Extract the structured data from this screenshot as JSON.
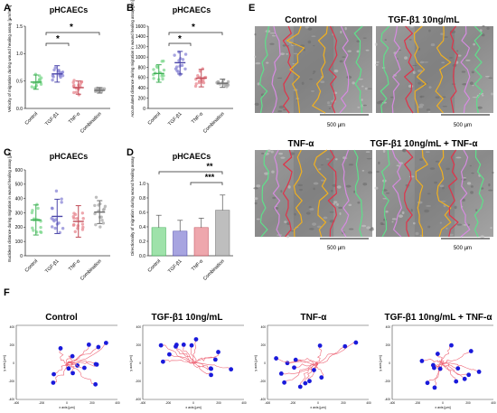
{
  "panels": {
    "A": {
      "letter": "A",
      "title": "pHCAECs",
      "ylabel": "Velocity of migration during wound healing assay [µm/min]",
      "yticks": [
        "0.0",
        "0.5",
        "1.0",
        "1.5"
      ],
      "sig": [
        "*",
        "*"
      ]
    },
    "B": {
      "letter": "B",
      "title": "pHCAECs",
      "ylabel": "Accumulated distance during migration in wound healing assay [µm]",
      "yticks": [
        "0",
        "200",
        "400",
        "600",
        "800",
        "1000",
        "1200",
        "1400",
        "1600"
      ],
      "sig": [
        "*",
        "*"
      ]
    },
    "C": {
      "letter": "C",
      "title": "pHCAECs",
      "ylabel": "Euclidean distance during migration in wound healing assay [µm]",
      "yticks": [
        "0",
        "100",
        "200",
        "300",
        "400",
        "500",
        "600"
      ]
    },
    "D": {
      "letter": "D",
      "title": "pHCAECs",
      "ylabel": "Directionality of migration during wound healing assay",
      "yticks": [
        "0.0",
        "0.2",
        "0.4",
        "0.6",
        "0.8",
        "1.0"
      ],
      "sig": [
        "**",
        "***"
      ]
    },
    "E": {
      "letter": "E",
      "images": [
        {
          "title": "Control",
          "scalebar": "500 µm"
        },
        {
          "title": "TGF-β1 10ng/mL",
          "scalebar": "500 µm"
        },
        {
          "title": "TNF-α",
          "scalebar": "500 µm"
        },
        {
          "title": "TGF-β1 10ng/mL + TNF-α",
          "scalebar": "500 µm"
        }
      ]
    },
    "F": {
      "letter": "F",
      "xlabel": "x axis [µm]",
      "ylabel": "y axis [µm]",
      "plots": [
        {
          "title": "Control"
        },
        {
          "title": "TGF-β1 10ng/mL"
        },
        {
          "title": "TNF-α"
        },
        {
          "title": "TGF-β1 10ng/mL + TNF-α"
        }
      ],
      "xticks": [
        "-400",
        "-300",
        "-200",
        "-100",
        "0",
        "100",
        "200",
        "300",
        "400"
      ],
      "yticks": [
        "400",
        "300",
        "200",
        "100",
        "0",
        "-100",
        "-200",
        "-300",
        "-400"
      ]
    }
  },
  "categories": [
    "Control",
    "TGF-β1",
    "TNF-α",
    "Combination"
  ],
  "colors": {
    "control": "#7dd88e",
    "tgf": "#8a86d6",
    "tnf": "#e88a92",
    "combo": "#a8a8a8",
    "track": "#ee6677",
    "endpoint": "#1a1adb"
  },
  "chart_data": [
    {
      "type": "scatter",
      "panel": "A",
      "title": "pHCAECs",
      "ylabel": "Velocity of migration during wound healing assay [µm/min]",
      "ylim": [
        0,
        1.5
      ],
      "categories": [
        "Control",
        "TGF-β1",
        "TNF-α",
        "Combination"
      ],
      "means": [
        0.48,
        0.63,
        0.38,
        0.33
      ],
      "sd": [
        0.13,
        0.15,
        0.12,
        0.05
      ]
    },
    {
      "type": "scatter",
      "panel": "B",
      "title": "pHCAECs",
      "ylabel": "Accumulated distance during migration in wound healing assay [µm]",
      "ylim": [
        0,
        1600
      ],
      "categories": [
        "Control",
        "TGF-β1",
        "TNF-α",
        "Combination"
      ],
      "means": [
        680,
        890,
        590,
        490
      ],
      "sd": [
        170,
        220,
        170,
        80
      ]
    },
    {
      "type": "scatter",
      "panel": "C",
      "title": "pHCAECs",
      "ylabel": "Euclidean distance during migration in wound healing assay [µm]",
      "ylim": [
        0,
        600
      ],
      "categories": [
        "Control",
        "TGF-β1",
        "TNF-α",
        "Combination"
      ],
      "means": [
        250,
        275,
        240,
        305
      ],
      "sd": [
        105,
        120,
        110,
        80
      ]
    },
    {
      "type": "bar",
      "panel": "D",
      "title": "pHCAECs",
      "ylabel": "Directionality of migration during wound healing assay",
      "ylim": [
        0,
        1.0
      ],
      "categories": [
        "Control",
        "TGF-β1",
        "TNF-α",
        "Combination"
      ],
      "values": [
        0.39,
        0.34,
        0.39,
        0.63
      ],
      "sd": [
        0.17,
        0.15,
        0.13,
        0.21
      ]
    }
  ]
}
